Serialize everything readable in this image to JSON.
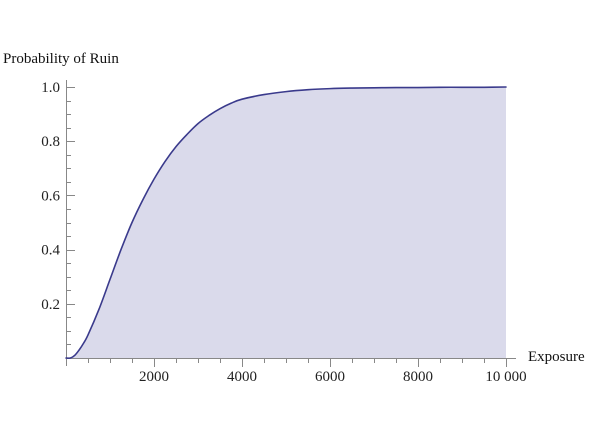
{
  "chart_data": {
    "type": "area",
    "title": "",
    "xlabel": "Exposure",
    "ylabel": "Probability of Ruin",
    "xlim": [
      0,
      10000
    ],
    "ylim": [
      0,
      1.0
    ],
    "x_ticks": [
      2000,
      4000,
      6000,
      8000,
      10000
    ],
    "x_tick_labels": [
      "2000",
      "4000",
      "6000",
      "8000",
      "10 000"
    ],
    "y_ticks": [
      0.2,
      0.4,
      0.6,
      0.8,
      1.0
    ],
    "y_tick_labels": [
      "0.2",
      "0.4",
      "0.6",
      "0.8",
      "1.0"
    ],
    "grid": false,
    "legend": "none",
    "series": [
      {
        "x": [
          0,
          100,
          200,
          300,
          400,
          500,
          750,
          1000,
          1250,
          1500,
          1750,
          2000,
          2250,
          2500,
          2750,
          3000,
          3250,
          3500,
          3750,
          4000,
          4500,
          5000,
          5500,
          6000,
          6500,
          7000,
          7500,
          8000,
          8500,
          9000,
          9500,
          10000
        ],
        "values": [
          0.0,
          0.0,
          0.01,
          0.03,
          0.055,
          0.085,
          0.18,
          0.29,
          0.4,
          0.5,
          0.585,
          0.66,
          0.725,
          0.78,
          0.825,
          0.865,
          0.895,
          0.92,
          0.94,
          0.955,
          0.972,
          0.983,
          0.99,
          0.994,
          0.996,
          0.997,
          0.998,
          0.998,
          0.999,
          0.999,
          0.999,
          1.0
        ]
      }
    ],
    "colors": {
      "line": "#3a3a8c",
      "fill": "#dadaeb",
      "axis": "#888888"
    }
  }
}
